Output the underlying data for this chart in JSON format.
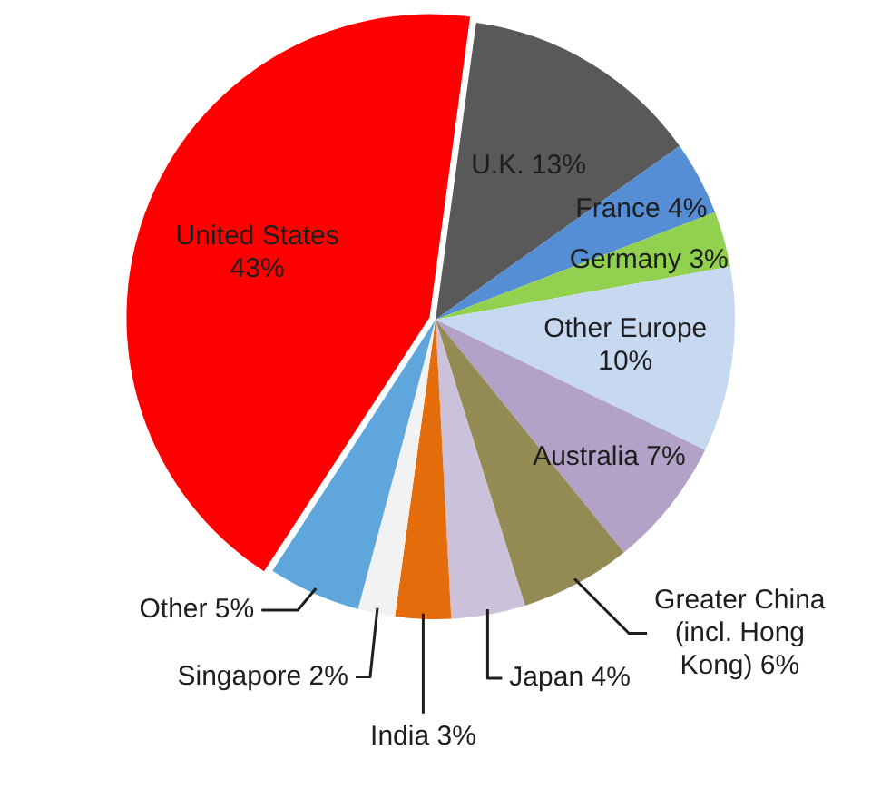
{
  "chart_data": {
    "type": "pie",
    "categories": [
      "United States",
      "U.K.",
      "France",
      "Germany",
      "Other Europe",
      "Australia",
      "Greater China (incl. Hong Kong)",
      "Japan",
      "India",
      "Singapore",
      "Other"
    ],
    "values": [
      43,
      13,
      4,
      3,
      10,
      7,
      6,
      4,
      3,
      2,
      5
    ],
    "colors": [
      "#ff0000",
      "#595959",
      "#558ed5",
      "#92d050",
      "#c6d9f1",
      "#b3a2c7",
      "#948a54",
      "#ccc1da",
      "#e46c0a",
      "#f2f2f2",
      "#5fa6dc"
    ],
    "value_labels": [
      "43%",
      "13%",
      "4%",
      "3%",
      "10%",
      "7%",
      "6%",
      "4%",
      "3%",
      "2%",
      "5%"
    ]
  }
}
